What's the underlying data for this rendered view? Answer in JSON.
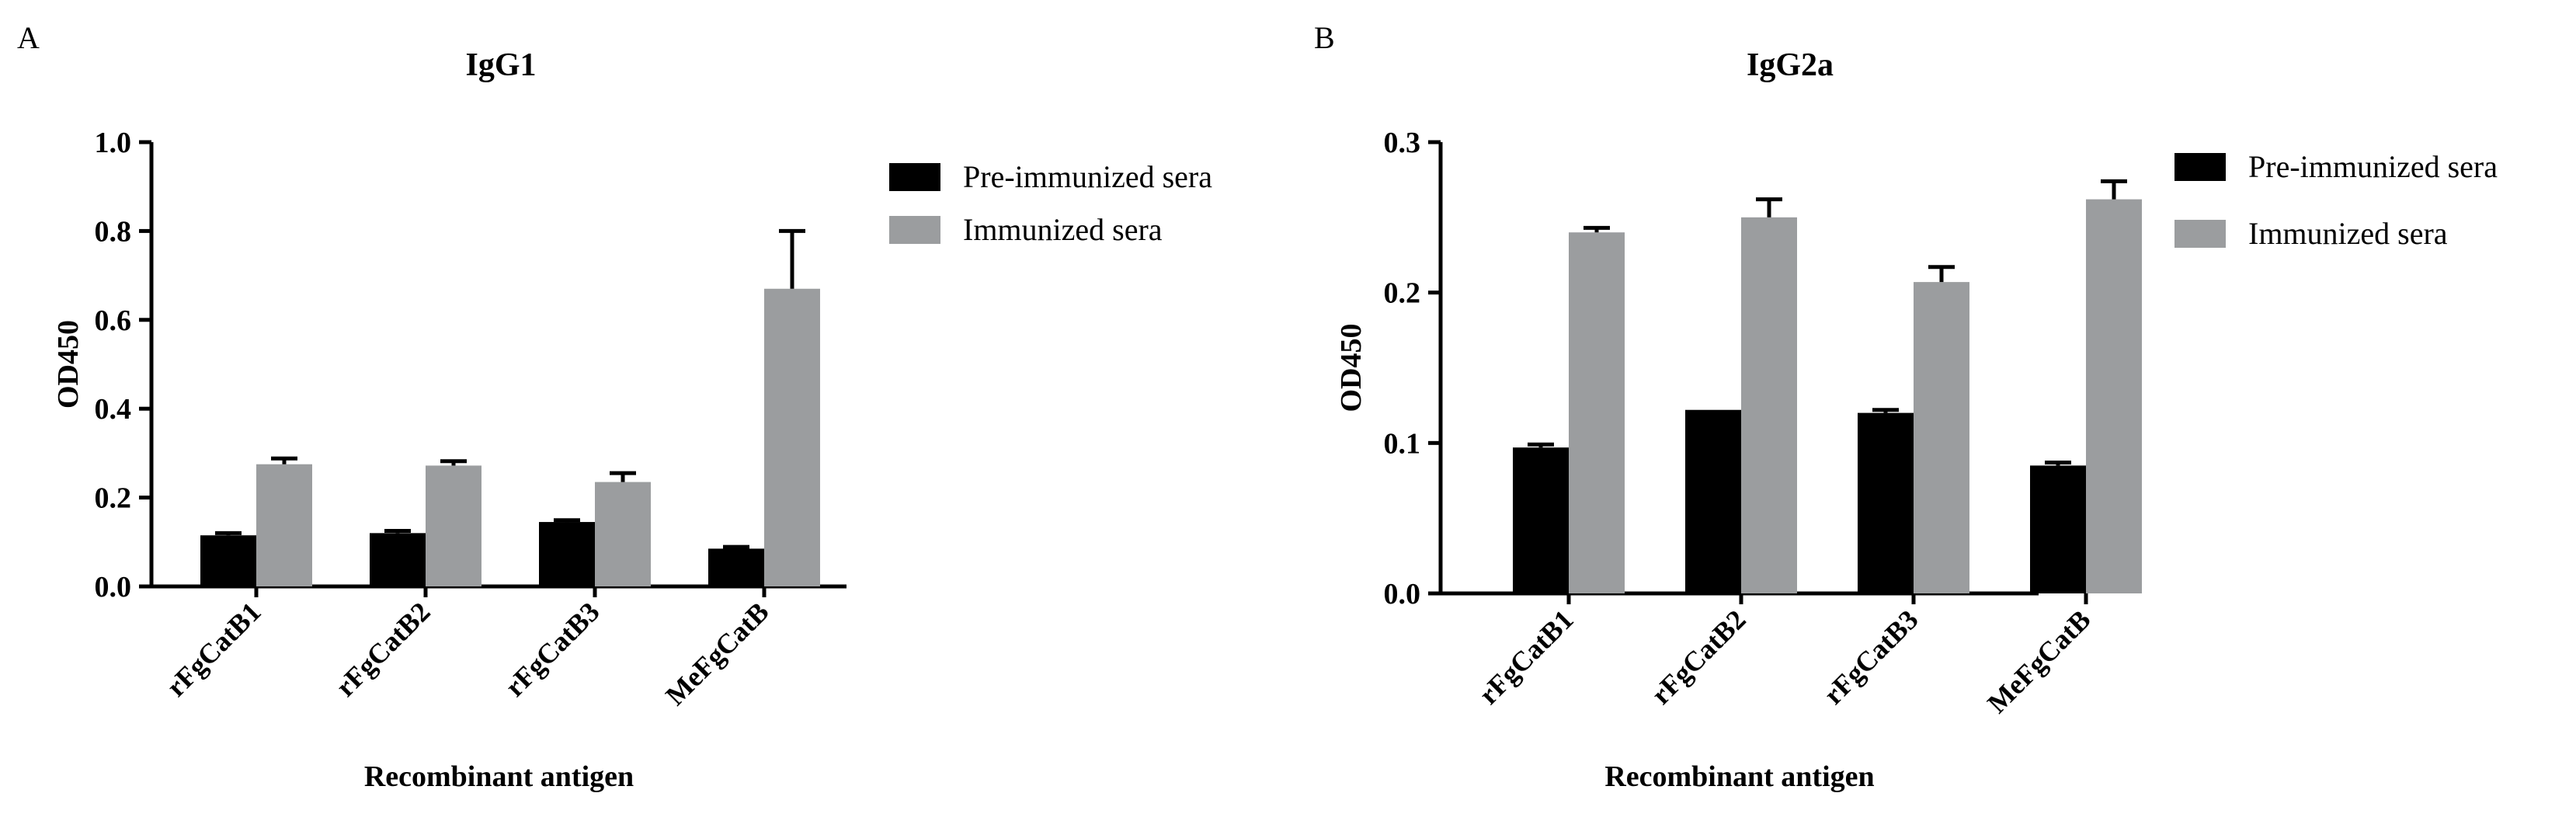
{
  "colors": {
    "pre": "#000000",
    "imm": "#9b9d9f",
    "axis": "#000000"
  },
  "chart_data": [
    {
      "type": "bar",
      "panel": "A",
      "title": "IgG1",
      "xlabel": "Recombinant antigen",
      "ylabel": "OD450",
      "ylim": [
        0,
        1.0
      ],
      "yticks": [
        "0.0",
        "0.2",
        "0.4",
        "0.6",
        "0.8",
        "1.0"
      ],
      "categories": [
        "rFgCatB1",
        "rFgCatB2",
        "rFgCatB3",
        "MeFgCatB"
      ],
      "series": [
        {
          "name": "Pre-immunized sera",
          "values": [
            0.115,
            0.12,
            0.145,
            0.085
          ],
          "errors": [
            0.005,
            0.005,
            0.004,
            0.004
          ]
        },
        {
          "name": "Immunized sera",
          "values": [
            0.275,
            0.272,
            0.235,
            0.67
          ],
          "errors": [
            0.013,
            0.01,
            0.02,
            0.13
          ]
        }
      ],
      "legend": "top-right"
    },
    {
      "type": "bar",
      "panel": "B",
      "title": "IgG2a",
      "xlabel": "Recombinant antigen",
      "ylabel": "OD450",
      "ylim": [
        0,
        0.3
      ],
      "yticks": [
        "0.0",
        "0.1",
        "0.2",
        "0.3"
      ],
      "categories": [
        "rFgCatB1",
        "rFgCatB2",
        "rFgCatB3",
        "MeFgCatB"
      ],
      "series": [
        {
          "name": "Pre-immunized sera",
          "values": [
            0.097,
            0.122,
            0.12,
            0.085
          ],
          "errors": [
            0.002,
            0.0,
            0.002,
            0.002
          ]
        },
        {
          "name": "Immunized sera",
          "values": [
            0.24,
            0.25,
            0.207,
            0.262
          ],
          "errors": [
            0.003,
            0.012,
            0.01,
            0.012
          ]
        }
      ],
      "legend": "top-right"
    }
  ]
}
